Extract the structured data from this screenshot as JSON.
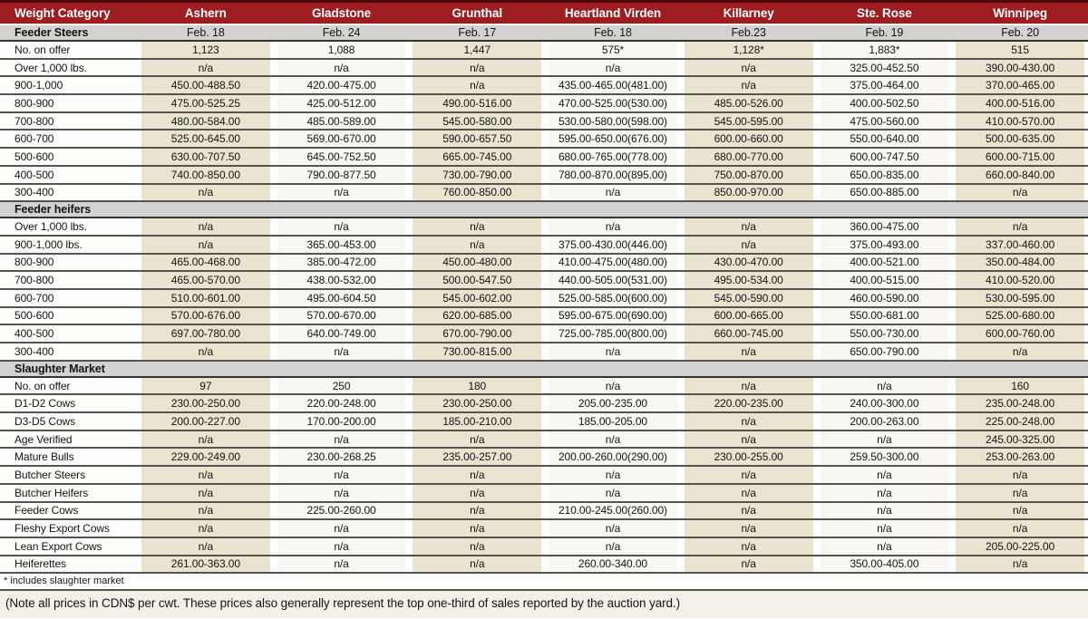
{
  "colors": {
    "header_red": "#9D1D21",
    "header_red_top_border": "#4d090c",
    "section_gray": "#D4D2D0",
    "stripe_beige": "#E9E3D0",
    "stripe_light": "#F8F7F3",
    "row_line": "#56544f",
    "note_background": "#F2F0E9"
  },
  "table": {
    "columns": [
      "Weight Category",
      "Ashern",
      "Gladstone",
      "Grunthal",
      "Heartland Virden",
      "Killarney",
      "Ste. Rose",
      "Winnipeg"
    ],
    "sections": [
      {
        "label": "Feeder Steers",
        "dates": [
          "Feb. 18",
          "Feb. 24",
          "Feb. 17",
          "Feb. 18",
          "Feb.23",
          "Feb. 19",
          "Feb. 20"
        ],
        "rows": [
          {
            "label": "No. on offer",
            "values": [
              "1,123",
              "1,088",
              "1,447",
              "575*",
              "1,128*",
              "1,883*",
              "515"
            ]
          },
          {
            "label": "Over 1,000 lbs.",
            "values": [
              "n/a",
              "n/a",
              "n/a",
              "n/a",
              "n/a",
              "325.00-452.50",
              "390.00-430.00"
            ]
          },
          {
            "label": "900-1,000",
            "values": [
              "450.00-488.50",
              "420.00-475.00",
              "n/a",
              "435.00-465.00(481.00)",
              "n/a",
              "375.00-464.00",
              "370.00-465.00"
            ]
          },
          {
            "label": "800-900",
            "values": [
              "475.00-525.25",
              "425.00-512.00",
              "490.00-516.00",
              "470.00-525.00(530.00)",
              "485.00-526.00",
              "400.00-502.50",
              "400.00-516.00"
            ]
          },
          {
            "label": "700-800",
            "values": [
              "480.00-584.00",
              "485.00-589.00",
              "545.00-580.00",
              "530.00-580.00(598.00)",
              "545.00-595.00",
              "475.00-560.00",
              "410.00-570.00"
            ]
          },
          {
            "label": "600-700",
            "values": [
              "525.00-645.00",
              "569.00-670.00",
              "590.00-657.50",
              "595.00-650.00(676.00)",
              "600.00-660.00",
              "550.00-640.00",
              "500.00-635.00"
            ]
          },
          {
            "label": "500-600",
            "values": [
              "630.00-707.50",
              "645.00-752.50",
              "665.00-745.00",
              "680.00-765.00(778.00)",
              "680.00-770.00",
              "600.00-747.50",
              "600.00-715.00"
            ]
          },
          {
            "label": "400-500",
            "values": [
              "740.00-850.00",
              "790.00-877.50",
              "730.00-790.00",
              "780.00-870.00(895.00)",
              "750.00-870.00",
              "650.00-835.00",
              "660.00-840.00"
            ]
          },
          {
            "label": "300-400",
            "values": [
              "n/a",
              "n/a",
              "760.00-850.00",
              "n/a",
              "850.00-970.00",
              "650.00-885.00",
              "n/a"
            ]
          }
        ]
      },
      {
        "label": "Feeder heifers",
        "dates": null,
        "rows": [
          {
            "label": "Over 1,000 lbs.",
            "values": [
              "n/a",
              "n/a",
              "n/a",
              "n/a",
              "n/a",
              "360.00-475.00",
              "n/a"
            ]
          },
          {
            "label": "900-1,000 lbs.",
            "values": [
              "n/a",
              "365.00-453.00",
              "n/a",
              "375.00-430.00(446.00)",
              "n/a",
              "375.00-493.00",
              "337.00-460.00"
            ]
          },
          {
            "label": "800-900",
            "values": [
              "465.00-468.00",
              "385.00-472.00",
              "450.00-480.00",
              "410.00-475.00(480.00)",
              "430.00-470.00",
              "400.00-521.00",
              "350.00-484.00"
            ]
          },
          {
            "label": "700-800",
            "values": [
              "465.00-570.00",
              "438.00-532.00",
              "500.00-547.50",
              "440.00-505.00(531.00)",
              "495.00-534.00",
              "400.00-515.00",
              "410.00-520.00"
            ]
          },
          {
            "label": "600-700",
            "values": [
              "510.00-601.00",
              "495.00-604.50",
              "545.00-602.00",
              "525.00-585.00(600.00)",
              "545.00-590.00",
              "460.00-590.00",
              "530.00-595.00"
            ]
          },
          {
            "label": "500-600",
            "values": [
              "570.00-676.00",
              "570.00-670.00",
              "620.00-685.00",
              "595.00-675.00(690.00)",
              "600.00-665.00",
              "550.00-681.00",
              "525.00-680.00"
            ]
          },
          {
            "label": "400-500",
            "values": [
              "697.00-780.00",
              "640.00-749.00",
              "670.00-790.00",
              "725.00-785.00(800.00)",
              "660.00-745.00",
              "550.00-730.00",
              "600.00-760.00"
            ]
          },
          {
            "label": "300-400",
            "values": [
              "n/a",
              "n/a",
              "730.00-815.00",
              "n/a",
              "n/a",
              "650.00-790.00",
              "n/a"
            ]
          }
        ]
      },
      {
        "label": "Slaughter Market",
        "dates": null,
        "rows": [
          {
            "label": "No. on offer",
            "values": [
              "97",
              "250",
              "180",
              "n/a",
              "n/a",
              "n/a",
              "160"
            ]
          },
          {
            "label": "D1-D2 Cows",
            "values": [
              "230.00-250.00",
              "220.00-248.00",
              "230.00-250.00",
              "205.00-235.00",
              "220.00-235.00",
              "240.00-300.00",
              "235.00-248.00"
            ]
          },
          {
            "label": "D3-D5 Cows",
            "values": [
              "200.00-227.00",
              "170.00-200.00",
              "185.00-210.00",
              "185.00-205.00",
              "n/a",
              "200.00-263.00",
              "225.00-248.00"
            ]
          },
          {
            "label": "Age Verified",
            "values": [
              "n/a",
              "n/a",
              "n/a",
              "n/a",
              "n/a",
              "n/a",
              "245.00-325.00"
            ]
          },
          {
            "label": "Mature Bulls",
            "values": [
              "229.00-249.00",
              "230.00-268.25",
              "235.00-257.00",
              "200.00-260.00(290.00)",
              "230.00-255.00",
              "259.50-300.00",
              "253.00-263.00"
            ]
          },
          {
            "label": "Butcher Steers",
            "values": [
              "n/a",
              "n/a",
              "n/a",
              "n/a",
              "n/a",
              "n/a",
              "n/a"
            ]
          },
          {
            "label": "Butcher Heifers",
            "values": [
              "n/a",
              "n/a",
              "n/a",
              "n/a",
              "n/a",
              "n/a",
              "n/a"
            ]
          },
          {
            "label": "Feeder Cows",
            "values": [
              "n/a",
              "225.00-260.00",
              "n/a",
              "210.00-245.00(260.00)",
              "n/a",
              "n/a",
              "n/a"
            ]
          },
          {
            "label": "Fleshy Export Cows",
            "values": [
              "n/a",
              "n/a",
              "n/a",
              "n/a",
              "n/a",
              "n/a",
              "n/a"
            ]
          },
          {
            "label": "Lean Export Cows",
            "values": [
              "n/a",
              "n/a",
              "n/a",
              "n/a",
              "n/a",
              "n/a",
              "205.00-225.00"
            ]
          },
          {
            "label": "Heiferettes",
            "values": [
              "261.00-363.00",
              "n/a",
              "n/a",
              "260.00-340.00",
              "n/a",
              "350.00-405.00",
              "n/a"
            ]
          }
        ]
      }
    ]
  },
  "footnote": "* includes slaughter market",
  "note": "(Note all prices in CDN$ per cwt. These prices also generally represent the top one-third of sales reported by the auction yard.)"
}
